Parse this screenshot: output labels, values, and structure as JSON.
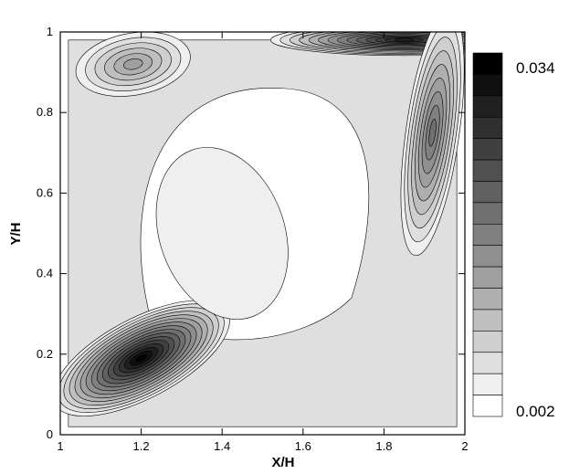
{
  "chart_data": {
    "type": "heatmap",
    "subtype": "filled-contour",
    "title": "",
    "xlabel": "X/H",
    "ylabel": "Y/H",
    "xlim": [
      1,
      2
    ],
    "ylim": [
      0,
      1
    ],
    "xticks": [
      "1",
      "1.2",
      "1.4",
      "1.6",
      "1.8",
      "2"
    ],
    "yticks": [
      "0",
      "0.2",
      "0.4",
      "0.6",
      "0.8",
      "1"
    ],
    "grid": false,
    "colormap": "white-to-black grayscale",
    "colorbar": {
      "min": 0.002,
      "max": 0.034,
      "levels": 17,
      "labels": [
        "0.034",
        "0.002"
      ],
      "position": "right"
    },
    "features": [
      {
        "name": "maximum",
        "x": 1.2,
        "y": 0.19,
        "value": 0.034
      },
      {
        "name": "top-wall band",
        "x": 1.85,
        "y": 0.98,
        "value": 0.03
      },
      {
        "name": "right-wall band",
        "x": 1.92,
        "y": 0.75,
        "value": 0.02
      },
      {
        "name": "upper-left island",
        "x": 1.18,
        "y": 0.92,
        "value": 0.014
      },
      {
        "name": "central minimum",
        "x": 1.4,
        "y": 0.5,
        "value": 0.004
      }
    ]
  }
}
